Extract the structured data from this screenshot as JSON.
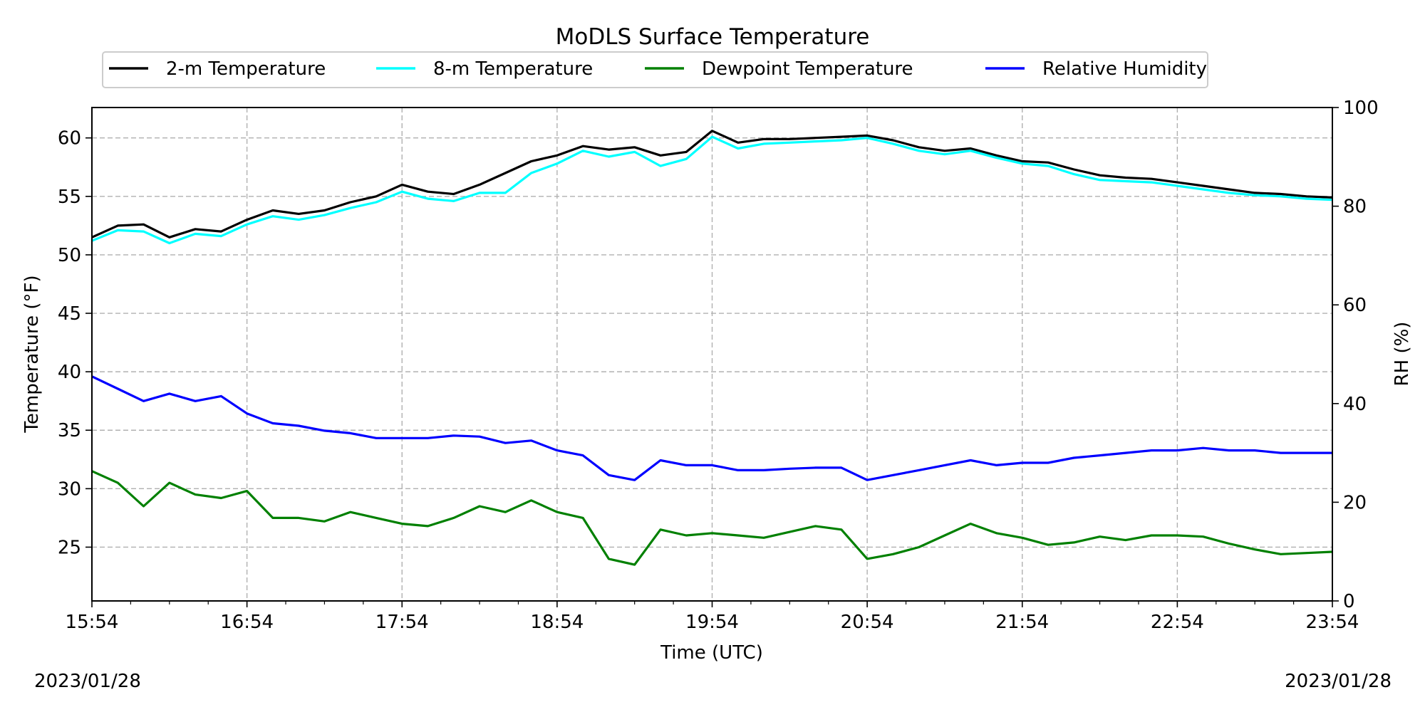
{
  "chart_data": {
    "type": "line",
    "title": "MoDLS Surface Temperature",
    "xlabel": "Time (UTC)",
    "ylabel": "Temperature (°F)",
    "ylabel_right": "RH (%)",
    "x_ticks": [
      "15:54",
      "16:54",
      "17:54",
      "18:54",
      "19:54",
      "20:54",
      "21:54",
      "22:54",
      "23:54"
    ],
    "y_ticks": [
      "25",
      "30",
      "35",
      "40",
      "45",
      "50",
      "55",
      "60"
    ],
    "y2_ticks": [
      "0",
      "20",
      "40",
      "60",
      "80",
      "100"
    ],
    "xlim": [
      "15:54",
      "23:54"
    ],
    "ylim": [
      20.4,
      62.6
    ],
    "y2lim": [
      0,
      100
    ],
    "grid": true,
    "legend_position": "top-center",
    "series": [
      {
        "name": "2-m Temperature",
        "axis": "left",
        "color": "#000000",
        "points": [
          [
            "15:54",
            51.5
          ],
          [
            "16:04",
            52.5
          ],
          [
            "16:14",
            52.6
          ],
          [
            "16:24",
            51.5
          ],
          [
            "16:34",
            52.2
          ],
          [
            "16:44",
            52.0
          ],
          [
            "16:54",
            53.0
          ],
          [
            "17:04",
            53.8
          ],
          [
            "17:14",
            53.5
          ],
          [
            "17:24",
            53.8
          ],
          [
            "17:34",
            54.5
          ],
          [
            "17:44",
            55.0
          ],
          [
            "17:54",
            56.0
          ],
          [
            "18:04",
            55.4
          ],
          [
            "18:14",
            55.2
          ],
          [
            "18:24",
            56.0
          ],
          [
            "18:34",
            57.0
          ],
          [
            "18:44",
            58.0
          ],
          [
            "18:54",
            58.5
          ],
          [
            "19:04",
            59.3
          ],
          [
            "19:14",
            59.0
          ],
          [
            "19:24",
            59.2
          ],
          [
            "19:34",
            58.5
          ],
          [
            "19:44",
            58.8
          ],
          [
            "19:54",
            60.6
          ],
          [
            "20:04",
            59.6
          ],
          [
            "20:14",
            59.9
          ],
          [
            "20:24",
            59.9
          ],
          [
            "20:34",
            60.0
          ],
          [
            "20:44",
            60.1
          ],
          [
            "20:54",
            60.2
          ],
          [
            "21:04",
            59.8
          ],
          [
            "21:14",
            59.2
          ],
          [
            "21:24",
            58.9
          ],
          [
            "21:34",
            59.1
          ],
          [
            "21:44",
            58.5
          ],
          [
            "21:54",
            58.0
          ],
          [
            "22:04",
            57.9
          ],
          [
            "22:14",
            57.3
          ],
          [
            "22:24",
            56.8
          ],
          [
            "22:34",
            56.6
          ],
          [
            "22:44",
            56.5
          ],
          [
            "22:54",
            56.2
          ],
          [
            "23:04",
            55.9
          ],
          [
            "23:14",
            55.6
          ],
          [
            "23:24",
            55.3
          ],
          [
            "23:34",
            55.2
          ],
          [
            "23:44",
            55.0
          ],
          [
            "23:54",
            54.9
          ]
        ]
      },
      {
        "name": "8-m Temperature",
        "axis": "left",
        "color": "#00ffff",
        "points": [
          [
            "15:54",
            51.2
          ],
          [
            "16:04",
            52.1
          ],
          [
            "16:14",
            52.0
          ],
          [
            "16:24",
            51.0
          ],
          [
            "16:34",
            51.8
          ],
          [
            "16:44",
            51.6
          ],
          [
            "16:54",
            52.6
          ],
          [
            "17:04",
            53.3
          ],
          [
            "17:14",
            53.0
          ],
          [
            "17:24",
            53.4
          ],
          [
            "17:34",
            54.0
          ],
          [
            "17:44",
            54.5
          ],
          [
            "17:54",
            55.4
          ],
          [
            "18:04",
            54.8
          ],
          [
            "18:14",
            54.6
          ],
          [
            "18:24",
            55.3
          ],
          [
            "18:34",
            55.3
          ],
          [
            "18:44",
            57.0
          ],
          [
            "18:54",
            57.8
          ],
          [
            "19:04",
            58.9
          ],
          [
            "19:14",
            58.4
          ],
          [
            "19:24",
            58.8
          ],
          [
            "19:34",
            57.6
          ],
          [
            "19:44",
            58.2
          ],
          [
            "19:54",
            60.1
          ],
          [
            "20:04",
            59.1
          ],
          [
            "20:14",
            59.5
          ],
          [
            "20:24",
            59.6
          ],
          [
            "20:34",
            59.7
          ],
          [
            "20:44",
            59.8
          ],
          [
            "20:54",
            60.0
          ],
          [
            "21:04",
            59.5
          ],
          [
            "21:14",
            58.9
          ],
          [
            "21:24",
            58.6
          ],
          [
            "21:34",
            58.9
          ],
          [
            "21:44",
            58.3
          ],
          [
            "21:54",
            57.8
          ],
          [
            "22:04",
            57.6
          ],
          [
            "22:14",
            56.9
          ],
          [
            "22:24",
            56.4
          ],
          [
            "22:34",
            56.3
          ],
          [
            "22:44",
            56.2
          ],
          [
            "22:54",
            55.9
          ],
          [
            "23:04",
            55.6
          ],
          [
            "23:14",
            55.3
          ],
          [
            "23:24",
            55.1
          ],
          [
            "23:34",
            55.0
          ],
          [
            "23:44",
            54.8
          ],
          [
            "23:54",
            54.7
          ]
        ]
      },
      {
        "name": "Dewpoint Temperature",
        "axis": "left",
        "color": "#008000",
        "points": [
          [
            "15:54",
            31.5
          ],
          [
            "16:04",
            30.5
          ],
          [
            "16:14",
            28.5
          ],
          [
            "16:24",
            30.5
          ],
          [
            "16:34",
            29.5
          ],
          [
            "16:44",
            29.2
          ],
          [
            "16:54",
            29.8
          ],
          [
            "17:04",
            27.5
          ],
          [
            "17:14",
            27.5
          ],
          [
            "17:24",
            27.2
          ],
          [
            "17:34",
            28.0
          ],
          [
            "17:44",
            27.5
          ],
          [
            "17:54",
            27.0
          ],
          [
            "18:04",
            26.8
          ],
          [
            "18:14",
            27.5
          ],
          [
            "18:24",
            28.5
          ],
          [
            "18:34",
            28.0
          ],
          [
            "18:44",
            29.0
          ],
          [
            "18:54",
            28.0
          ],
          [
            "19:04",
            27.5
          ],
          [
            "19:14",
            24.0
          ],
          [
            "19:24",
            23.5
          ],
          [
            "19:34",
            26.5
          ],
          [
            "19:44",
            26.0
          ],
          [
            "19:54",
            26.2
          ],
          [
            "20:04",
            26.0
          ],
          [
            "20:14",
            25.8
          ],
          [
            "20:24",
            26.3
          ],
          [
            "20:34",
            26.8
          ],
          [
            "20:44",
            26.5
          ],
          [
            "20:54",
            24.0
          ],
          [
            "21:04",
            24.4
          ],
          [
            "21:14",
            25.0
          ],
          [
            "21:24",
            26.0
          ],
          [
            "21:34",
            27.0
          ],
          [
            "21:44",
            26.2
          ],
          [
            "21:54",
            25.8
          ],
          [
            "22:04",
            25.2
          ],
          [
            "22:14",
            25.4
          ],
          [
            "22:24",
            25.9
          ],
          [
            "22:34",
            25.6
          ],
          [
            "22:44",
            26.0
          ],
          [
            "22:54",
            26.0
          ],
          [
            "23:04",
            25.9
          ],
          [
            "23:14",
            25.3
          ],
          [
            "23:24",
            24.8
          ],
          [
            "23:34",
            24.4
          ],
          [
            "23:44",
            24.5
          ],
          [
            "23:54",
            24.6
          ]
        ]
      },
      {
        "name": "Relative Humidity",
        "axis": "right",
        "color": "#0000ff",
        "points": [
          [
            "15:54",
            45.5
          ],
          [
            "16:04",
            43.0
          ],
          [
            "16:14",
            40.5
          ],
          [
            "16:24",
            42.0
          ],
          [
            "16:34",
            40.5
          ],
          [
            "16:44",
            41.5
          ],
          [
            "16:54",
            38.0
          ],
          [
            "17:04",
            36.0
          ],
          [
            "17:14",
            35.5
          ],
          [
            "17:24",
            34.5
          ],
          [
            "17:34",
            34.0
          ],
          [
            "17:44",
            33.0
          ],
          [
            "17:54",
            33.0
          ],
          [
            "18:04",
            33.0
          ],
          [
            "18:14",
            33.5
          ],
          [
            "18:24",
            33.3
          ],
          [
            "18:34",
            32.0
          ],
          [
            "18:44",
            32.5
          ],
          [
            "18:54",
            30.5
          ],
          [
            "19:04",
            29.5
          ],
          [
            "19:14",
            25.5
          ],
          [
            "19:24",
            24.5
          ],
          [
            "19:34",
            28.5
          ],
          [
            "19:44",
            27.5
          ],
          [
            "19:54",
            27.5
          ],
          [
            "20:04",
            26.5
          ],
          [
            "20:14",
            26.5
          ],
          [
            "20:24",
            26.8
          ],
          [
            "20:34",
            27.0
          ],
          [
            "20:44",
            27.0
          ],
          [
            "20:54",
            24.5
          ],
          [
            "21:04",
            25.5
          ],
          [
            "21:14",
            26.5
          ],
          [
            "21:24",
            27.5
          ],
          [
            "21:34",
            28.5
          ],
          [
            "21:44",
            27.5
          ],
          [
            "21:54",
            28.0
          ],
          [
            "22:04",
            28.0
          ],
          [
            "22:14",
            29.0
          ],
          [
            "22:24",
            29.5
          ],
          [
            "22:34",
            30.0
          ],
          [
            "22:44",
            30.5
          ],
          [
            "22:54",
            30.5
          ],
          [
            "23:04",
            31.0
          ],
          [
            "23:14",
            30.5
          ],
          [
            "23:24",
            30.5
          ],
          [
            "23:34",
            30.0
          ],
          [
            "23:44",
            30.0
          ],
          [
            "23:54",
            30.0
          ]
        ]
      }
    ]
  },
  "footer": {
    "date_left": "2023/01/28",
    "date_right": "2023/01/28"
  }
}
